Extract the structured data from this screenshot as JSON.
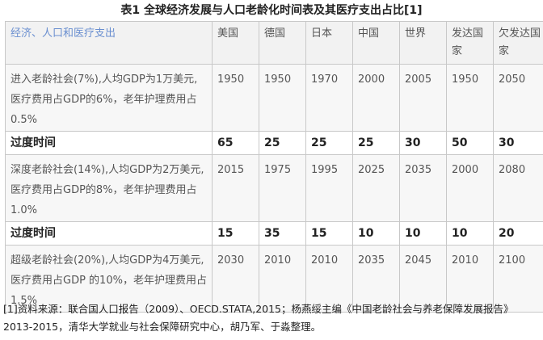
{
  "caption": "表1  全球经济发展与人口老龄化时间表及其医疗支出占比[1]",
  "table": {
    "header": [
      "经济、人口和医疗支出",
      "美国",
      "德国",
      "日本",
      "中国",
      "世界",
      "发达国家",
      "欠发达国家"
    ],
    "rows": [
      {
        "type": "desc",
        "label": "进入老龄社会(7%),人均GDP为1万美元,医疗费用占GDP的6%，老年护理费用占0.5%",
        "values": [
          "1950",
          "1950",
          "1970",
          "2000",
          "2005",
          "1950",
          "2050"
        ]
      },
      {
        "type": "trans",
        "label": "过度时间",
        "values": [
          "65",
          "25",
          "25",
          "25",
          "30",
          "50",
          "30"
        ]
      },
      {
        "type": "desc",
        "label": "深度老龄社会(14%),人均GDP为2万美元,医疗费用占GDP的8%，老年护理费用占1.0%",
        "values": [
          "2015",
          "1975",
          "1995",
          "2025",
          "2035",
          "2000",
          "2080"
        ]
      },
      {
        "type": "trans",
        "label": "过度时间",
        "values": [
          "15",
          "35",
          "15",
          "10",
          "10",
          "10",
          "20"
        ]
      },
      {
        "type": "desc",
        "label": "超级老龄社会(20%),人均GDP为4万美元,医疗费用占GDP 的10%，老年护理费用占1.5%",
        "values": [
          "2030",
          "2010",
          "2010",
          "2035",
          "2045",
          "2010",
          "2100"
        ]
      }
    ]
  },
  "footnote": "[1]资料来源：联合国人口报告（2009）、OECD.STATA,2015；杨燕绥主编《中国老龄社会与养老保障发展报告》2013-2015，清华大学就业与社会保障研究中心，胡乃军、于淼整理。"
}
